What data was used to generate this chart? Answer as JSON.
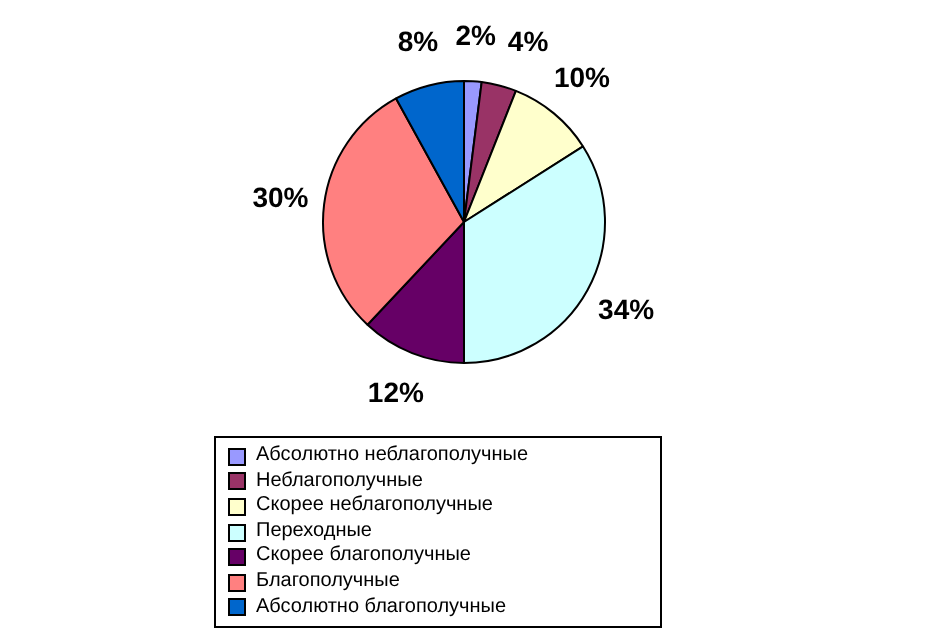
{
  "chart_data": {
    "type": "pie",
    "categories": [
      "Абсолютно неблагополучные",
      "Неблагополучные",
      "Скорее неблагополучные",
      "Переходные",
      "Скорее благополучные",
      "Благополучные",
      "Абсолютно благополучные"
    ],
    "values": [
      2,
      4,
      10,
      34,
      12,
      30,
      8
    ],
    "value_labels": [
      "2%",
      "4%",
      "10%",
      "34%",
      "12%",
      "30%",
      "8%"
    ],
    "colors": [
      "#9999ff",
      "#993366",
      "#ffffcc",
      "#ccffff",
      "#660066",
      "#ff8080",
      "#0066cc"
    ],
    "legend": "bottom"
  }
}
